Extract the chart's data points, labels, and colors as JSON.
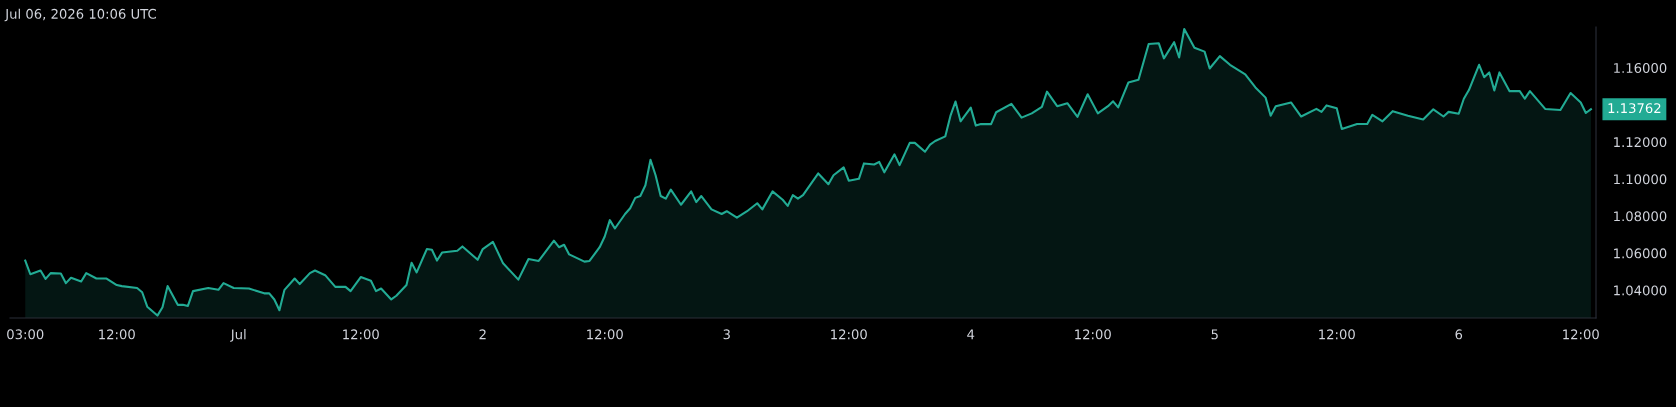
{
  "chart_data": {
    "type": "area",
    "title": "Jul 06, 2026 10:06 UTC",
    "x": [
      "2026-06-30T03:00",
      "2026-06-30T03:30",
      "2026-06-30T04:30",
      "2026-06-30T05:00",
      "2026-06-30T05:30",
      "2026-06-30T06:30",
      "2026-06-30T07:00",
      "2026-06-30T07:30",
      "2026-06-30T08:30",
      "2026-06-30T09:00",
      "2026-06-30T10:00",
      "2026-06-30T11:00",
      "2026-06-30T12:00",
      "2026-06-30T12:30",
      "2026-06-30T14:00",
      "2026-06-30T14:30",
      "2026-06-30T15:00",
      "2026-06-30T16:00",
      "2026-06-30T16:30",
      "2026-06-30T17:00",
      "2026-06-30T18:00",
      "2026-06-30T18:30",
      "2026-06-30T19:00",
      "2026-06-30T19:30",
      "2026-06-30T21:00",
      "2026-06-30T22:00",
      "2026-06-30T22:30",
      "2026-06-30T23:30",
      "2026-07-01T01:00",
      "2026-07-01T02:30",
      "2026-07-01T03:00",
      "2026-07-01T03:30",
      "2026-07-01T04:00",
      "2026-07-01T04:30",
      "2026-07-01T05:30",
      "2026-07-01T06:00",
      "2026-07-01T07:00",
      "2026-07-01T07:30",
      "2026-07-01T08:30",
      "2026-07-01T09:30",
      "2026-07-01T10:30",
      "2026-07-01T11:00",
      "2026-07-01T12:00",
      "2026-07-01T13:00",
      "2026-07-01T13:30",
      "2026-07-01T14:00",
      "2026-07-01T15:00",
      "2026-07-01T15:30",
      "2026-07-01T16:30",
      "2026-07-01T17:00",
      "2026-07-01T17:30",
      "2026-07-01T18:30",
      "2026-07-01T19:00",
      "2026-07-01T19:30",
      "2026-07-01T20:00",
      "2026-07-01T21:30",
      "2026-07-01T22:00",
      "2026-07-01T23:30",
      "2026-07-02T00:00",
      "2026-07-02T01:00",
      "2026-07-02T02:00",
      "2026-07-02T03:30",
      "2026-07-02T04:30",
      "2026-07-02T05:30",
      "2026-07-02T07:00",
      "2026-07-02T07:30",
      "2026-07-02T08:00",
      "2026-07-02T08:30",
      "2026-07-02T10:00",
      "2026-07-02T10:30",
      "2026-07-02T11:30",
      "2026-07-02T12:00",
      "2026-07-02T12:30",
      "2026-07-02T13:00",
      "2026-07-02T14:00",
      "2026-07-02T14:30",
      "2026-07-02T15:00",
      "2026-07-02T15:30",
      "2026-07-02T16:00",
      "2026-07-02T16:30",
      "2026-07-02T17:00",
      "2026-07-02T17:30",
      "2026-07-02T18:00",
      "2026-07-02T18:30",
      "2026-07-02T19:30",
      "2026-07-02T20:30",
      "2026-07-02T21:00",
      "2026-07-02T21:30",
      "2026-07-02T22:30",
      "2026-07-02T23:30",
      "2026-07-03T00:00",
      "2026-07-03T01:00",
      "2026-07-03T02:00",
      "2026-07-03T03:00",
      "2026-07-03T03:30",
      "2026-07-03T04:30",
      "2026-07-03T05:30",
      "2026-07-03T06:00",
      "2026-07-03T06:30",
      "2026-07-03T07:00",
      "2026-07-03T07:30",
      "2026-07-03T09:00",
      "2026-07-03T10:00",
      "2026-07-03T10:30",
      "2026-07-03T11:30",
      "2026-07-03T12:00",
      "2026-07-03T13:00",
      "2026-07-03T13:30",
      "2026-07-03T14:30",
      "2026-07-03T15:00",
      "2026-07-03T15:30",
      "2026-07-03T16:30",
      "2026-07-03T17:00",
      "2026-07-03T18:00",
      "2026-07-03T18:30",
      "2026-07-03T19:30",
      "2026-07-03T20:00",
      "2026-07-03T20:30",
      "2026-07-03T21:30",
      "2026-07-03T22:00",
      "2026-07-03T22:30",
      "2026-07-03T23:00",
      "2026-07-04T00:00",
      "2026-07-04T00:30",
      "2026-07-04T01:00",
      "2026-07-04T02:00",
      "2026-07-04T02:30",
      "2026-07-04T04:00",
      "2026-07-04T05:00",
      "2026-07-04T06:00",
      "2026-07-04T07:00",
      "2026-07-04T07:30",
      "2026-07-04T08:30",
      "2026-07-04T09:30",
      "2026-07-04T10:30",
      "2026-07-04T11:30",
      "2026-07-04T12:30",
      "2026-07-04T13:30",
      "2026-07-04T14:00",
      "2026-07-04T14:30",
      "2026-07-04T15:30",
      "2026-07-04T16:30",
      "2026-07-04T17:30",
      "2026-07-04T18:30",
      "2026-07-04T19:00",
      "2026-07-04T20:00",
      "2026-07-04T20:30",
      "2026-07-04T21:00",
      "2026-07-04T22:00",
      "2026-07-04T23:00",
      "2026-07-04T23:30",
      "2026-07-05T00:30",
      "2026-07-05T01:30",
      "2026-07-05T03:00",
      "2026-07-05T04:00",
      "2026-07-05T05:00",
      "2026-07-05T05:30",
      "2026-07-05T06:00",
      "2026-07-05T07:30",
      "2026-07-05T08:30",
      "2026-07-05T10:00",
      "2026-07-05T10:30",
      "2026-07-05T11:00",
      "2026-07-05T12:00",
      "2026-07-05T12:30",
      "2026-07-05T14:00",
      "2026-07-05T15:00",
      "2026-07-05T15:30",
      "2026-07-05T16:30",
      "2026-07-05T17:30",
      "2026-07-05T19:00",
      "2026-07-05T20:30",
      "2026-07-05T21:30",
      "2026-07-05T22:30",
      "2026-07-05T23:00",
      "2026-07-06T00:00",
      "2026-07-06T00:30",
      "2026-07-06T01:00",
      "2026-07-06T02:00",
      "2026-07-06T02:30",
      "2026-07-06T03:00",
      "2026-07-06T03:30",
      "2026-07-06T04:00",
      "2026-07-06T05:00",
      "2026-07-06T06:00",
      "2026-07-06T06:30",
      "2026-07-06T07:00",
      "2026-07-06T08:30",
      "2026-07-06T10:00",
      "2026-07-06T11:00",
      "2026-07-06T12:00",
      "2026-07-06T12:30",
      "2026-07-06T13:00"
    ],
    "series": [
      {
        "color": "#22ab94",
        "values": [
          1.056,
          1.0486,
          1.0506,
          1.0461,
          1.0492,
          1.049,
          1.0438,
          1.0467,
          1.0447,
          1.0492,
          1.0463,
          1.0463,
          1.0428,
          1.0422,
          1.0412,
          1.0389,
          1.0311,
          1.0263,
          1.0308,
          1.0422,
          1.0321,
          1.0321,
          1.0315,
          1.0395,
          1.0412,
          1.0402,
          1.0438,
          1.0412,
          1.0409,
          1.0383,
          1.0383,
          1.035,
          1.0292,
          1.0402,
          1.0463,
          1.0433,
          1.0492,
          1.0506,
          1.0481,
          1.0418,
          1.0418,
          1.0395,
          1.0471,
          1.0451,
          1.0395,
          1.0409,
          1.035,
          1.037,
          1.0428,
          1.0548,
          1.0496,
          1.0622,
          1.0618,
          1.056,
          1.0603,
          1.0613,
          1.0636,
          1.0564,
          1.0622,
          1.0661,
          1.0545,
          1.0457,
          1.0568,
          1.0558,
          1.0667,
          1.0632,
          1.0645,
          1.0593,
          1.0554,
          1.0558,
          1.0632,
          1.069,
          1.0778,
          1.0733,
          1.0811,
          1.0842,
          1.0898,
          1.0908,
          1.0966,
          1.1104,
          1.102,
          1.0908,
          1.0894,
          1.0943,
          1.0861,
          1.0933,
          1.0875,
          1.0908,
          1.0836,
          1.0811,
          1.0826,
          1.0791,
          1.0826,
          1.0869,
          1.0836,
          1.0933,
          1.0888,
          1.0855,
          1.0913,
          1.0894,
          1.0913,
          1.103,
          1.0972,
          1.102,
          1.1063,
          1.0991,
          1.1001,
          1.1084,
          1.1078,
          1.1092,
          1.1036,
          1.1133,
          1.1075,
          1.1195,
          1.1195,
          1.1147,
          1.1185,
          1.1205,
          1.123,
          1.134,
          1.1418,
          1.1311,
          1.1385,
          1.1288,
          1.1296,
          1.1296,
          1.136,
          1.1405,
          1.1331,
          1.1354,
          1.1389,
          1.1471,
          1.1393,
          1.1409,
          1.1335,
          1.1457,
          1.1354,
          1.1393,
          1.1419,
          1.1386,
          1.152,
          1.1535,
          1.1728,
          1.1732,
          1.1651,
          1.1738,
          1.1656,
          1.1809,
          1.1708,
          1.1687,
          1.1596,
          1.1663,
          1.1616,
          1.1565,
          1.1494,
          1.1439,
          1.1341,
          1.1392,
          1.1413,
          1.1337,
          1.1378,
          1.1362,
          1.1397,
          1.1382,
          1.127,
          1.1297,
          1.1297,
          1.1346,
          1.1311,
          1.1366,
          1.1341,
          1.1321,
          1.1376,
          1.1337,
          1.1362,
          1.1352,
          1.1433,
          1.148,
          1.1616,
          1.1549,
          1.1575,
          1.1478,
          1.1575,
          1.1474,
          1.1474,
          1.1433,
          1.1474,
          1.1378,
          1.1372,
          1.1464,
          1.1413,
          1.1356,
          1.1376
        ]
      }
    ],
    "xlim": [
      "2026-06-30T01:30",
      "2026-07-06T13:30"
    ],
    "xticks": [
      {
        "value": "2026-06-30T03:00",
        "label": "03:00"
      },
      {
        "value": "2026-06-30T12:00",
        "label": "12:00"
      },
      {
        "value": "2026-07-01T00:00",
        "label": "Jul"
      },
      {
        "value": "2026-07-01T12:00",
        "label": "12:00"
      },
      {
        "value": "2026-07-02T00:00",
        "label": "2"
      },
      {
        "value": "2026-07-02T12:00",
        "label": "12:00"
      },
      {
        "value": "2026-07-03T00:00",
        "label": "3"
      },
      {
        "value": "2026-07-03T12:00",
        "label": "12:00"
      },
      {
        "value": "2026-07-04T00:00",
        "label": "4"
      },
      {
        "value": "2026-07-04T12:00",
        "label": "12:00"
      },
      {
        "value": "2026-07-05T00:00",
        "label": "5"
      },
      {
        "value": "2026-07-05T12:00",
        "label": "12:00"
      },
      {
        "value": "2026-07-06T00:00",
        "label": "6"
      },
      {
        "value": "2026-07-06T12:00",
        "label": "12:00"
      }
    ],
    "ylim": [
      1.025,
      1.182
    ],
    "yticks": [
      {
        "value": 1.04,
        "label": "1.04000"
      },
      {
        "value": 1.06,
        "label": "1.06000"
      },
      {
        "value": 1.08,
        "label": "1.08000"
      },
      {
        "value": 1.1,
        "label": "1.10000"
      },
      {
        "value": 1.12,
        "label": "1.12000"
      },
      {
        "value": 1.16,
        "label": "1.16000"
      }
    ],
    "annotations": [
      "1.13762"
    ],
    "grid": false,
    "legend": false
  }
}
